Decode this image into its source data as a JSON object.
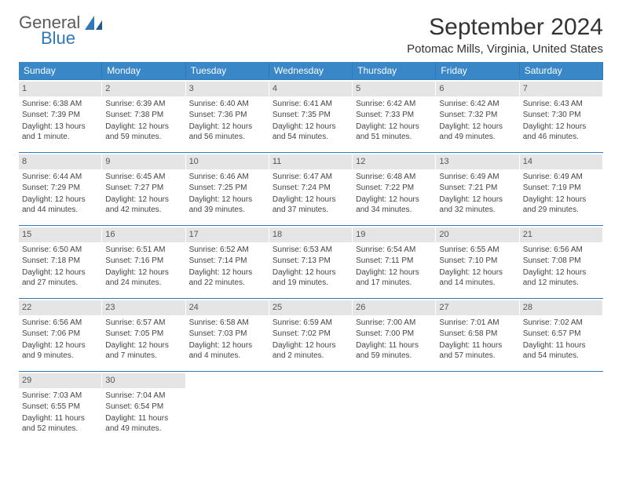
{
  "brand": {
    "word1": "General",
    "word2": "Blue",
    "accent": "#2f78b7"
  },
  "title": "September 2024",
  "location": "Potomac Mills, Virginia, United States",
  "colors": {
    "header_bg": "#3a87c8",
    "header_text": "#ffffff",
    "daynum_bg": "#e5e5e5",
    "rule": "#2f78b7",
    "text": "#444444",
    "background": "#ffffff"
  },
  "layout": {
    "columns": 7,
    "rows": 5,
    "first_weekday_index": 0
  },
  "weekdays": [
    "Sunday",
    "Monday",
    "Tuesday",
    "Wednesday",
    "Thursday",
    "Friday",
    "Saturday"
  ],
  "days": [
    {
      "n": "1",
      "sunrise": "Sunrise: 6:38 AM",
      "sunset": "Sunset: 7:39 PM",
      "daylight": "Daylight: 13 hours and 1 minute."
    },
    {
      "n": "2",
      "sunrise": "Sunrise: 6:39 AM",
      "sunset": "Sunset: 7:38 PM",
      "daylight": "Daylight: 12 hours and 59 minutes."
    },
    {
      "n": "3",
      "sunrise": "Sunrise: 6:40 AM",
      "sunset": "Sunset: 7:36 PM",
      "daylight": "Daylight: 12 hours and 56 minutes."
    },
    {
      "n": "4",
      "sunrise": "Sunrise: 6:41 AM",
      "sunset": "Sunset: 7:35 PM",
      "daylight": "Daylight: 12 hours and 54 minutes."
    },
    {
      "n": "5",
      "sunrise": "Sunrise: 6:42 AM",
      "sunset": "Sunset: 7:33 PM",
      "daylight": "Daylight: 12 hours and 51 minutes."
    },
    {
      "n": "6",
      "sunrise": "Sunrise: 6:42 AM",
      "sunset": "Sunset: 7:32 PM",
      "daylight": "Daylight: 12 hours and 49 minutes."
    },
    {
      "n": "7",
      "sunrise": "Sunrise: 6:43 AM",
      "sunset": "Sunset: 7:30 PM",
      "daylight": "Daylight: 12 hours and 46 minutes."
    },
    {
      "n": "8",
      "sunrise": "Sunrise: 6:44 AM",
      "sunset": "Sunset: 7:29 PM",
      "daylight": "Daylight: 12 hours and 44 minutes."
    },
    {
      "n": "9",
      "sunrise": "Sunrise: 6:45 AM",
      "sunset": "Sunset: 7:27 PM",
      "daylight": "Daylight: 12 hours and 42 minutes."
    },
    {
      "n": "10",
      "sunrise": "Sunrise: 6:46 AM",
      "sunset": "Sunset: 7:25 PM",
      "daylight": "Daylight: 12 hours and 39 minutes."
    },
    {
      "n": "11",
      "sunrise": "Sunrise: 6:47 AM",
      "sunset": "Sunset: 7:24 PM",
      "daylight": "Daylight: 12 hours and 37 minutes."
    },
    {
      "n": "12",
      "sunrise": "Sunrise: 6:48 AM",
      "sunset": "Sunset: 7:22 PM",
      "daylight": "Daylight: 12 hours and 34 minutes."
    },
    {
      "n": "13",
      "sunrise": "Sunrise: 6:49 AM",
      "sunset": "Sunset: 7:21 PM",
      "daylight": "Daylight: 12 hours and 32 minutes."
    },
    {
      "n": "14",
      "sunrise": "Sunrise: 6:49 AM",
      "sunset": "Sunset: 7:19 PM",
      "daylight": "Daylight: 12 hours and 29 minutes."
    },
    {
      "n": "15",
      "sunrise": "Sunrise: 6:50 AM",
      "sunset": "Sunset: 7:18 PM",
      "daylight": "Daylight: 12 hours and 27 minutes."
    },
    {
      "n": "16",
      "sunrise": "Sunrise: 6:51 AM",
      "sunset": "Sunset: 7:16 PM",
      "daylight": "Daylight: 12 hours and 24 minutes."
    },
    {
      "n": "17",
      "sunrise": "Sunrise: 6:52 AM",
      "sunset": "Sunset: 7:14 PM",
      "daylight": "Daylight: 12 hours and 22 minutes."
    },
    {
      "n": "18",
      "sunrise": "Sunrise: 6:53 AM",
      "sunset": "Sunset: 7:13 PM",
      "daylight": "Daylight: 12 hours and 19 minutes."
    },
    {
      "n": "19",
      "sunrise": "Sunrise: 6:54 AM",
      "sunset": "Sunset: 7:11 PM",
      "daylight": "Daylight: 12 hours and 17 minutes."
    },
    {
      "n": "20",
      "sunrise": "Sunrise: 6:55 AM",
      "sunset": "Sunset: 7:10 PM",
      "daylight": "Daylight: 12 hours and 14 minutes."
    },
    {
      "n": "21",
      "sunrise": "Sunrise: 6:56 AM",
      "sunset": "Sunset: 7:08 PM",
      "daylight": "Daylight: 12 hours and 12 minutes."
    },
    {
      "n": "22",
      "sunrise": "Sunrise: 6:56 AM",
      "sunset": "Sunset: 7:06 PM",
      "daylight": "Daylight: 12 hours and 9 minutes."
    },
    {
      "n": "23",
      "sunrise": "Sunrise: 6:57 AM",
      "sunset": "Sunset: 7:05 PM",
      "daylight": "Daylight: 12 hours and 7 minutes."
    },
    {
      "n": "24",
      "sunrise": "Sunrise: 6:58 AM",
      "sunset": "Sunset: 7:03 PM",
      "daylight": "Daylight: 12 hours and 4 minutes."
    },
    {
      "n": "25",
      "sunrise": "Sunrise: 6:59 AM",
      "sunset": "Sunset: 7:02 PM",
      "daylight": "Daylight: 12 hours and 2 minutes."
    },
    {
      "n": "26",
      "sunrise": "Sunrise: 7:00 AM",
      "sunset": "Sunset: 7:00 PM",
      "daylight": "Daylight: 11 hours and 59 minutes."
    },
    {
      "n": "27",
      "sunrise": "Sunrise: 7:01 AM",
      "sunset": "Sunset: 6:58 PM",
      "daylight": "Daylight: 11 hours and 57 minutes."
    },
    {
      "n": "28",
      "sunrise": "Sunrise: 7:02 AM",
      "sunset": "Sunset: 6:57 PM",
      "daylight": "Daylight: 11 hours and 54 minutes."
    },
    {
      "n": "29",
      "sunrise": "Sunrise: 7:03 AM",
      "sunset": "Sunset: 6:55 PM",
      "daylight": "Daylight: 11 hours and 52 minutes."
    },
    {
      "n": "30",
      "sunrise": "Sunrise: 7:04 AM",
      "sunset": "Sunset: 6:54 PM",
      "daylight": "Daylight: 11 hours and 49 minutes."
    }
  ]
}
